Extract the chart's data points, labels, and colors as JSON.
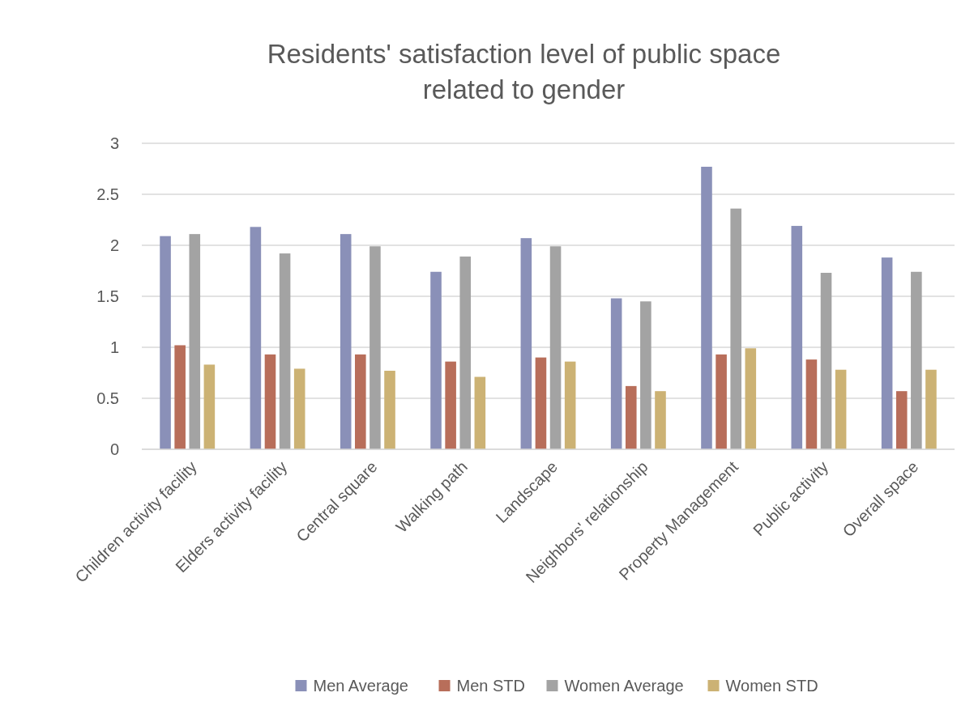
{
  "chart_data": {
    "type": "bar",
    "title": "Residents' satisfaction level of public space related to gender",
    "categories": [
      "Children activity facility",
      "Elders activity facility",
      "Central square",
      "Walking path",
      "Landscape",
      "Neighbors' relationship",
      "Property Management",
      "Public activity",
      "Overall space"
    ],
    "series": [
      {
        "name": "Men Average",
        "color": "#8a90b8",
        "values": [
          2.09,
          2.18,
          2.11,
          1.74,
          2.07,
          1.48,
          2.77,
          2.19,
          1.88
        ]
      },
      {
        "name": "Men STD",
        "color": "#b86e5a",
        "values": [
          1.02,
          0.93,
          0.93,
          0.86,
          0.9,
          0.62,
          0.93,
          0.88,
          0.57
        ]
      },
      {
        "name": "Women Average",
        "color": "#a3a3a3",
        "values": [
          2.11,
          1.92,
          1.99,
          1.89,
          1.99,
          1.45,
          2.36,
          1.73,
          1.74
        ]
      },
      {
        "name": "Women STD",
        "color": "#ccb274",
        "values": [
          0.83,
          0.79,
          0.77,
          0.71,
          0.86,
          0.57,
          0.99,
          0.78,
          0.78
        ]
      }
    ],
    "ylim": [
      0,
      3
    ],
    "yticks": [
      0,
      0.5,
      1,
      1.5,
      2,
      2.5,
      3
    ],
    "grid": "y",
    "legend": "bottom"
  }
}
